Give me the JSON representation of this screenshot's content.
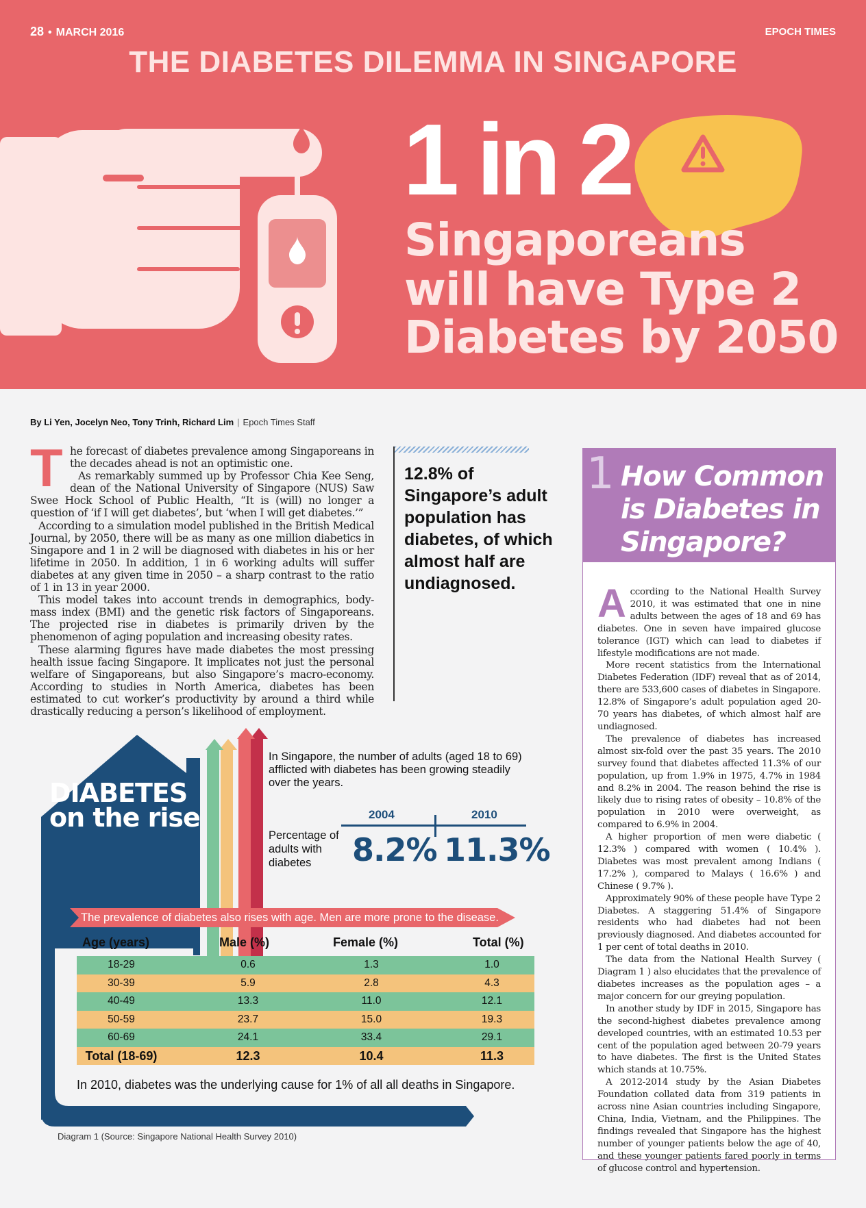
{
  "header": {
    "page_number": "28",
    "date": "MARCH 2016",
    "publication": "EPOCH TIMES",
    "kicker": "THE DIABETES DILEMMA IN SINGAPORE"
  },
  "hero": {
    "stat": "1 in 2",
    "line1": "Singaporeans",
    "line2": "will have Type 2",
    "line3": "Diabetes by 2050"
  },
  "byline": {
    "authors": "By Li Yen, Jocelyn Neo, Tony Trinh, Richard Lim",
    "staff": "Epoch Times Staff"
  },
  "article": {
    "drop_cap": "T",
    "paragraphs": [
      "he forecast of diabetes prevalence among Singaporeans in the decades ahead is not an optimistic one.",
      "As remarkably summed up by Professor Chia Kee Seng, dean of the National University of Singapore (NUS) Saw Swee Hock School of Public Health, “It is (will) no longer a question of ‘if I will get diabetes’, but ‘when I will get diabetes.’”",
      "According to a simulation model published in the British Medical Journal, by 2050, there will be as many as one million diabetics in Singapore and 1 in 2 will be diagnosed with diabetes in his or her lifetime in 2050. In addition, 1 in 6 working adults will suffer diabetes at any given time in 2050 – a sharp contrast to the ratio of 1 in 13 in year 2000.",
      "This model takes into account trends in demographics, body-mass index (BMI) and the genetic risk factors of Singaporeans. The projected rise in diabetes is primarily driven by the phenomenon of aging population and increasing obesity rates.",
      "These alarming figures have made diabetes the most pressing health issue facing Singapore. It implicates not just the personal welfare of Singaporeans, but also Singapore’s macro-economy. According to studies in North America, diabetes has been estimated to cut worker’s productivity by around a third while drastically reducing a person’s likelihood of employment."
    ]
  },
  "pull_quote": "12.8% of Singapore’s adult population has diabetes, of which almost half are undiagnosed.",
  "sidebar": {
    "number": "1",
    "title": "How Common is Diabetes in Singapore?",
    "drop_cap": "A",
    "paragraphs": [
      "ccording to the National Health Survey 2010, it was estimated that one in nine adults between the ages of 18 and 69 has diabetes. One in seven have impaired glucose tolerance (IGT) which can lead to diabetes if lifestyle modifications are not made.",
      "More recent statistics from the International Diabetes Federation (IDF) reveal that as of 2014, there are 533,600 cases of diabetes in Singapore. 12.8% of Singapore’s adult population aged 20-70 years has diabetes, of which almost half are undiagnosed.",
      "The prevalence of diabetes has increased almost six-fold over the past 35 years. The 2010 survey found that diabetes affected 11.3% of our population, up from 1.9% in 1975, 4.7% in 1984 and 8.2% in 2004. The reason behind the rise is likely due to rising rates of obesity – 10.8% of the population in 2010 were overweight, as compared to 6.9% in 2004.",
      "A higher proportion of men were diabetic ( 12.3% ) compared with women ( 10.4% ). Diabetes was most prevalent among Indians ( 17.2% ), compared to Malays ( 16.6% ) and Chinese ( 9.7% ).",
      "Approximately 90% of these people have Type 2 Diabetes. A staggering 51.4% of Singapore residents who had diabetes had not been previously diagnosed. And diabetes accounted for 1 per cent of total deaths in 2010.",
      "The data from the National Health Survey ( Diagram 1 ) also elucidates that the prevalence of diabetes increases as the population ages – a major concern for our greying population.",
      "In another study by IDF in 2015, Singapore has the second-highest diabetes prevalence among developed countries, with an estimated 10.53 per cent of the population aged between 20-79 years to have diabetes. The first is the United States which stands at 10.75%.",
      "A 2012-2014 study by the Asian Diabetes Foundation collated data from 319 patients in across nine Asian countries including Singapore, China, India, Vietnam, and the Philippines. The findings revealed that Singapore has the highest number of younger patients below the age of 40, and these younger patients fared poorly in terms of glucose control and hypertension."
    ]
  },
  "infographic": {
    "title_line1": "DIABETES",
    "title_line2": "on the rise",
    "intro": "In Singapore, the number of adults (aged 18 to 69) afflicted with diabetes has been growing steadily over the years.",
    "year_a": "2004",
    "year_b": "2010",
    "pct_label": "Percentage of adults with diabetes",
    "pct_a": "8.2%",
    "pct_b": "11.3%",
    "ribbon": "The prevalence of diabetes also rises with age. Men are more prone to the disease.",
    "headers": [
      "Age (years)",
      "Male (%)",
      "Female (%)",
      "Total (%)"
    ],
    "rows": [
      [
        "18-29",
        "0.6",
        "1.3",
        "1.0"
      ],
      [
        "30-39",
        "5.9",
        "2.8",
        "4.3"
      ],
      [
        "40-49",
        "13.3",
        "11.0",
        "12.1"
      ],
      [
        "50-59",
        "23.7",
        "15.0",
        "19.3"
      ],
      [
        "60-69",
        "24.1",
        "33.4",
        "29.1"
      ]
    ],
    "total_row": [
      "Total (18-69)",
      "12.3",
      "10.4",
      "11.3"
    ],
    "footnote": "In 2010, diabetes was the underlying cause for 1% of all all deaths in Singapore.",
    "caption": "Diagram 1 (Source: Singapore National Health Survey 2010)"
  },
  "colors": {
    "coral": "#e8666a",
    "navy": "#1d4e7a",
    "purple": "#b07bb8",
    "green": "#7cc49a",
    "orange": "#f4c37c"
  }
}
